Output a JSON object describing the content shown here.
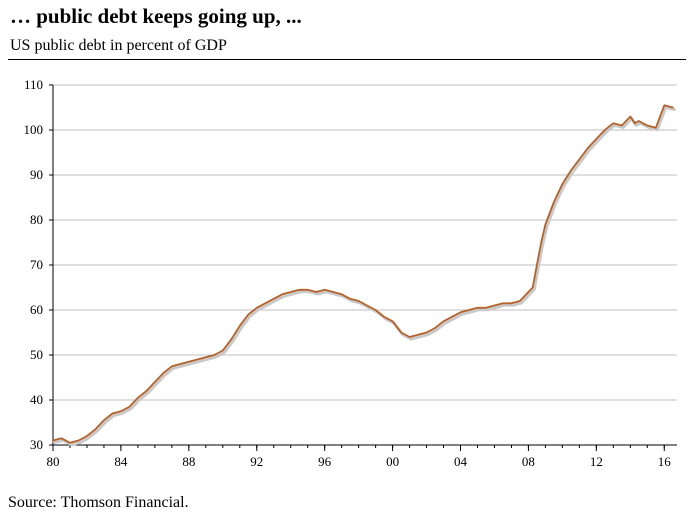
{
  "header": {
    "title": "… public debt keeps going up, ...",
    "subtitle": "US public debt in percent of GDP"
  },
  "footer": {
    "source": "Source: Thomson Financial."
  },
  "colors": {
    "series": "#b5622a",
    "grid": "#bfbfbf",
    "axis": "#000000"
  },
  "chart_data": {
    "type": "line",
    "title": "",
    "xlabel": "",
    "ylabel": "",
    "xlim": [
      1980,
      2016.75
    ],
    "ylim": [
      30,
      110
    ],
    "yticks": [
      30,
      40,
      50,
      60,
      70,
      80,
      90,
      100,
      110
    ],
    "xticks": [
      1980,
      1984,
      1988,
      1992,
      1996,
      2000,
      2004,
      2008,
      2012,
      2016
    ],
    "xtick_labels": [
      "80",
      "84",
      "88",
      "92",
      "96",
      "00",
      "04",
      "08",
      "12",
      "16"
    ],
    "grid": true,
    "legend": "none",
    "series": [
      {
        "x": [
          1980,
          1980.5,
          1981,
          1981.5,
          1982,
          1982.5,
          1983,
          1983.5,
          1984,
          1984.5,
          1985,
          1985.5,
          1986,
          1986.5,
          1987,
          1987.5,
          1988,
          1988.5,
          1989,
          1989.5,
          1990,
          1990.5,
          1991,
          1991.5,
          1992,
          1992.5,
          1993,
          1993.5,
          1994,
          1994.5,
          1995,
          1995.5,
          1996,
          1996.5,
          1997,
          1997.5,
          1998,
          1998.5,
          1999,
          1999.5,
          2000,
          2000.5,
          2001,
          2001.5,
          2002,
          2002.5,
          2003,
          2003.5,
          2004,
          2004.5,
          2005,
          2005.5,
          2006,
          2006.5,
          2007,
          2007.5,
          2008,
          2008.25,
          2008.5,
          2008.75,
          2009,
          2009.5,
          2010,
          2010.5,
          2011,
          2011.5,
          2012,
          2012.5,
          2013,
          2013.5,
          2014,
          2014.25,
          2014.5,
          2014.75,
          2015,
          2015.5,
          2016,
          2016.5
        ],
        "values": [
          31,
          31.5,
          30.5,
          31,
          32,
          33.5,
          35.5,
          37,
          37.5,
          38.5,
          40.5,
          42,
          44,
          46,
          47.5,
          48,
          48.5,
          49,
          49.5,
          50,
          51,
          53.5,
          56.5,
          59,
          60.5,
          61.5,
          62.5,
          63.5,
          64,
          64.5,
          64.5,
          64,
          64.5,
          64,
          63.5,
          62.5,
          62,
          61,
          60,
          58.5,
          57.5,
          55,
          54,
          54.5,
          55,
          56,
          57.5,
          58.5,
          59.5,
          60,
          60.5,
          60.5,
          61,
          61.5,
          61.5,
          62,
          64,
          65,
          70,
          75,
          79,
          84,
          88,
          91,
          93.5,
          96,
          98,
          100,
          101.5,
          101,
          103,
          101.5,
          102,
          101.5,
          101,
          100.5,
          105.5,
          105
        ]
      }
    ]
  }
}
